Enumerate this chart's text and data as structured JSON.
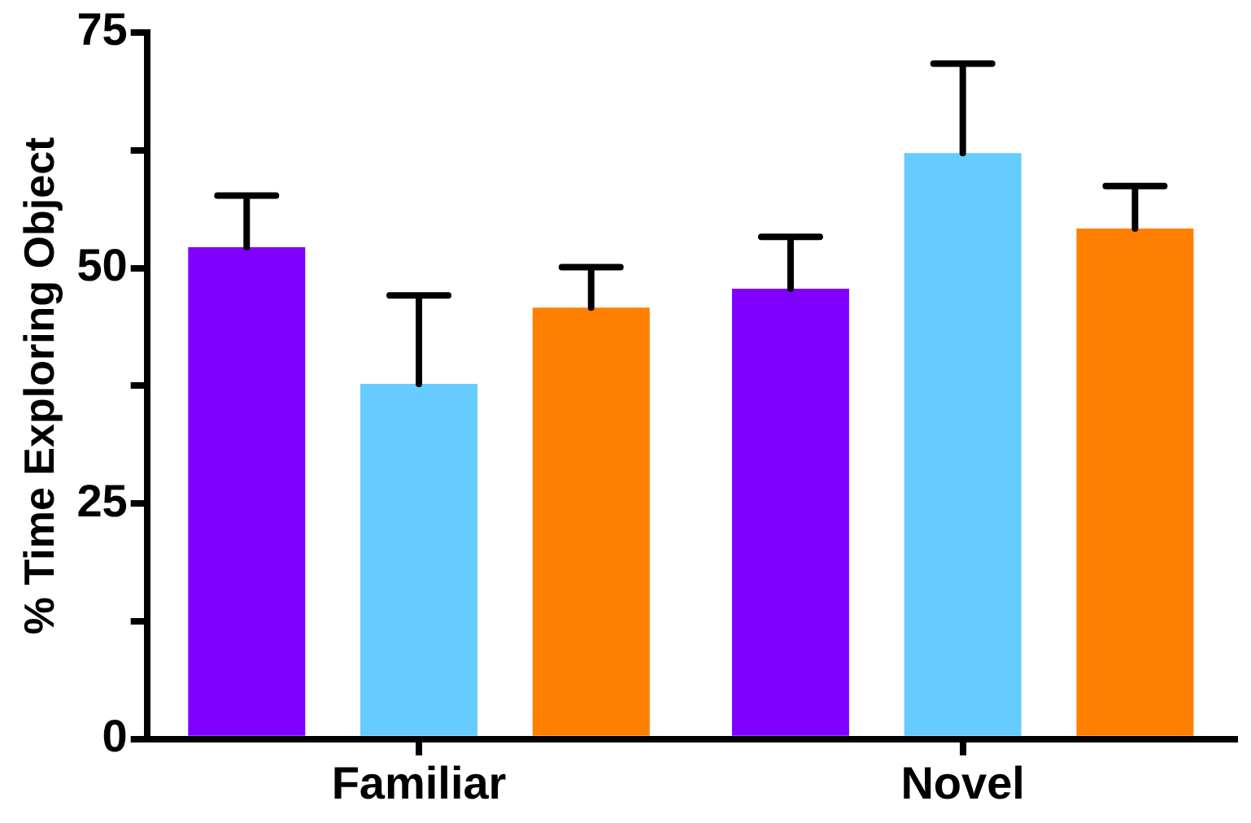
{
  "chart_data": {
    "type": "bar",
    "ylabel": "% Time Exploring Object",
    "categories": [
      "Familiar",
      "Novel"
    ],
    "series": [
      {
        "color": "#7f00ff",
        "values": [
          52.2,
          47.8
        ],
        "errors": [
          [
            52.2,
            57.7
          ],
          [
            47.8,
            53.3
          ]
        ]
      },
      {
        "color": "#66ccff",
        "values": [
          37.7,
          62.2
        ],
        "errors": [
          [
            37.7,
            47.1
          ],
          [
            62.2,
            71.7
          ]
        ]
      },
      {
        "color": "#ff8000",
        "values": [
          45.8,
          54.2
        ],
        "errors": [
          [
            45.8,
            50.1
          ],
          [
            54.2,
            58.7
          ]
        ]
      }
    ],
    "ylim": [
      0,
      75
    ],
    "yticks": [
      0,
      {
        "value": 12.5,
        "label": null
      },
      25,
      {
        "value": 37.5,
        "label": null
      },
      50,
      {
        "value": 62.5,
        "label": null
      },
      75
    ],
    "grid": false,
    "legend": false
  }
}
